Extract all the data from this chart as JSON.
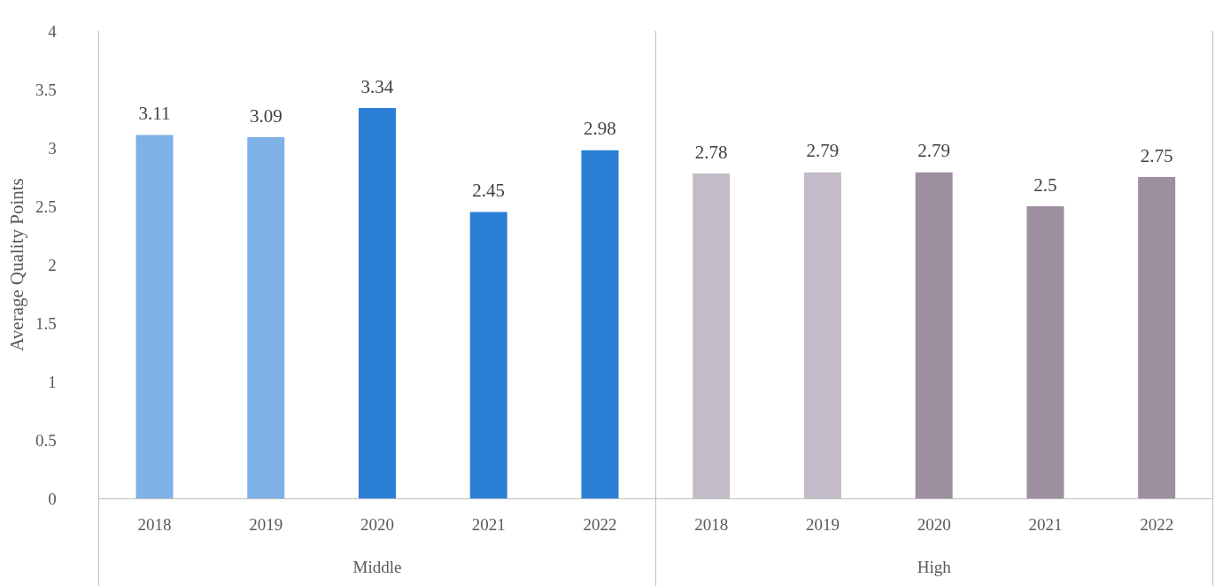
{
  "chart_data": {
    "type": "bar",
    "ylabel": "Average Quality Points",
    "categories": [
      "2018",
      "2019",
      "2020",
      "2021",
      "2022",
      "2018",
      "2019",
      "2020",
      "2021",
      "2022"
    ],
    "series": [
      {
        "values": [
          3.11,
          3.09,
          3.34,
          2.45,
          2.98,
          null,
          null,
          null,
          null,
          null
        ],
        "colors": [
          "#7eb1e5",
          "#7eb1e5",
          "#2a7fd5",
          "#2a7fd5",
          "#2a7fd5",
          null,
          null,
          null,
          null,
          null
        ]
      },
      {
        "values": [
          null,
          null,
          null,
          null,
          null,
          2.78,
          2.79,
          2.79,
          2.5,
          2.75
        ],
        "colors": [
          null,
          null,
          null,
          null,
          null,
          "#c3bcc8",
          "#c3bcc8",
          "#9d8f9f",
          "#9d8f9f",
          "#9d8f9f"
        ]
      }
    ],
    "ylim": [
      0,
      4
    ],
    "yticks": [
      0,
      0.5,
      1,
      1.5,
      2,
      2.5,
      3,
      3.5,
      4
    ],
    "annotations": [
      "Middle",
      "High"
    ],
    "grid": false,
    "data_labels": true
  }
}
